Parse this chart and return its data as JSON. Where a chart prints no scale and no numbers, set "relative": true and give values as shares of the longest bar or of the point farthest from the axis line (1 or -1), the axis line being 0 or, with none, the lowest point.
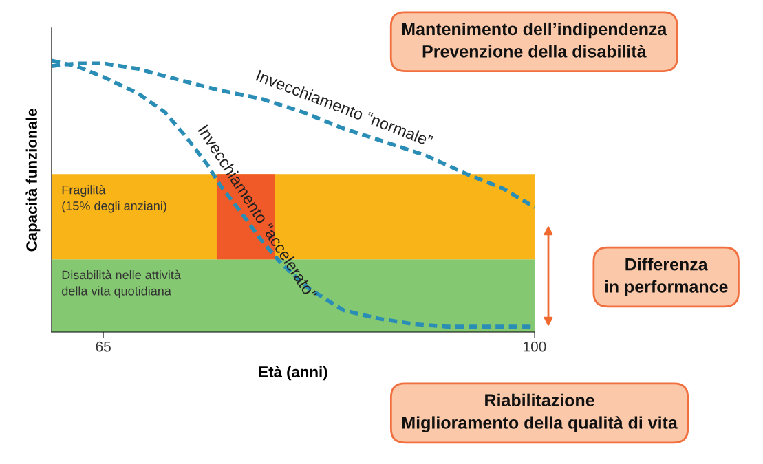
{
  "chart_data": {
    "type": "line",
    "relative": true,
    "xlabel": "Età (anni)",
    "ylabel": "Capacità funzionale",
    "x": [
      60.8,
      62.8,
      65,
      67.8,
      71.1,
      74.5,
      77.8,
      81.2,
      84.5,
      87.9,
      91.2,
      94.6,
      97.4,
      100
    ],
    "xlim": [
      60.8,
      100
    ],
    "xticks": [
      65,
      100
    ],
    "tick_labels": "x",
    "grid": false,
    "legend": false,
    "line_style": "dashed",
    "series": [
      {
        "name": "Invecchiamento “normale”",
        "color": "#2a8db5",
        "values": [
          0.98,
          0.99,
          0.99,
          0.97,
          0.93,
          0.89,
          0.86,
          0.81,
          0.75,
          0.7,
          0.65,
          0.58,
          0.53,
          0.46
        ]
      },
      {
        "name": "Invecchiamento “accelerato”",
        "color": "#2a8db5",
        "x": [
          60.8,
          62.8,
          65,
          67.8,
          70.0,
          71.7,
          73.4,
          74.5,
          76.2,
          77.8,
          79.5,
          81.7,
          84.5,
          87.3,
          90.1,
          92.9,
          95.7,
          100
        ],
        "values": [
          1.0,
          0.98,
          0.94,
          0.88,
          0.81,
          0.72,
          0.62,
          0.54,
          0.44,
          0.34,
          0.25,
          0.16,
          0.08,
          0.05,
          0.03,
          0.02,
          0.02,
          0.02
        ]
      }
    ],
    "bands": [
      {
        "axis": "y",
        "from": 0,
        "to": 0.268,
        "label": "Disabilità nelle attività\ndella vita quotidiana",
        "color": "#84c872"
      },
      {
        "axis": "y",
        "from": 0.268,
        "to": 0.582,
        "label": "Fragilità\n(15% degli anziani)",
        "color": "#f9b418"
      },
      {
        "axis": "x",
        "from": 74.2,
        "to": 78.9,
        "color": "#f05a28"
      }
    ],
    "annotations": [
      "Mantenimento dell’indipendenza\nPrevenzione della disabilità",
      "Differenza\nin performance",
      "Riabilitazione\nMiglioramento della qualità di vita"
    ]
  }
}
